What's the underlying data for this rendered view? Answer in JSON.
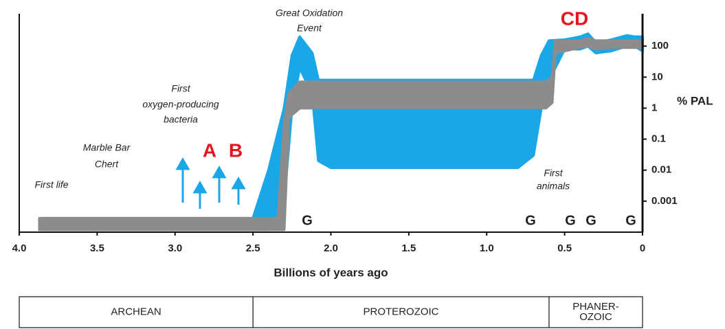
{
  "chart_data": {
    "type": "band",
    "x_label": "Billions of years ago",
    "y_label": "% PAL",
    "xlim": [
      4,
      0
    ],
    "xticks": [
      {
        "value": 4,
        "label": "4.0"
      },
      3.5,
      {
        "value": 3,
        "label": "3.0"
      },
      2.5,
      {
        "value": 2,
        "label": "2.0"
      },
      1.5,
      {
        "value": 1,
        "label": "1.0"
      },
      0.5,
      0
    ],
    "ylim": [
      0.0001,
      1000
    ],
    "log_y": true,
    "yticks": [
      0.001,
      0.01,
      0.1,
      1,
      10,
      100
    ],
    "series": [
      {
        "name": "blue",
        "color": "#1aa7e8",
        "x": [
          3.87,
          2.5,
          2.4,
          2.3,
          2.25,
          2.2,
          2.12,
          2.08,
          2.0,
          0.8,
          0.7,
          0.65,
          0.6,
          0.5,
          0.4,
          0.35,
          0.3,
          0.2,
          0.1,
          0.05,
          0
        ],
        "lower": [
          0.00012,
          0.00012,
          0.00012,
          0.001,
          1,
          20,
          3,
          0.02,
          0.012,
          0.012,
          0.03,
          1,
          8,
          80,
          80,
          100,
          60,
          70,
          100,
          100,
          70
        ],
        "upper": [
          0.00028,
          0.00028,
          0.01,
          1,
          50,
          200,
          60,
          8,
          8,
          8,
          8,
          50,
          150,
          160,
          200,
          250,
          130,
          160,
          220,
          200,
          200
        ]
      },
      {
        "name": "gray",
        "color": "#8c8c8c",
        "x": [
          3.87,
          2.34,
          2.3,
          2.27,
          2.2,
          0.62,
          0.58,
          0.56,
          0.4,
          0.35,
          0.3,
          0.2,
          0
        ],
        "lower": [
          0.00012,
          0.00012,
          0.00012,
          0.5,
          1,
          1,
          1.5,
          60,
          90,
          100,
          80,
          90,
          90
        ],
        "upper": [
          0.00028,
          0.00028,
          0.3,
          3,
          7,
          7,
          10,
          150,
          150,
          180,
          150,
          150,
          150
        ]
      }
    ],
    "annotations": {
      "goe": [
        "Great Oxidation",
        "Event"
      ],
      "bacteria": [
        "First",
        "oxygen-producing",
        "bacteria"
      ],
      "marble": [
        "Marble Bar",
        "Chert"
      ],
      "life": "First life",
      "animals": [
        "First",
        "animals"
      ],
      "a": "A",
      "b": "B",
      "cd": "CD",
      "g": [
        "G",
        "G",
        "G",
        "G",
        "G"
      ]
    },
    "eras": [
      {
        "name": [
          "ARCHEAN"
        ],
        "start": 4,
        "end": 2.5
      },
      {
        "name": [
          "PROTEROZOIC"
        ],
        "start": 2.5,
        "end": 0.6
      },
      {
        "name": [
          "PHANER-",
          "OZOIC"
        ],
        "start": 0.6,
        "end": 0
      }
    ]
  }
}
